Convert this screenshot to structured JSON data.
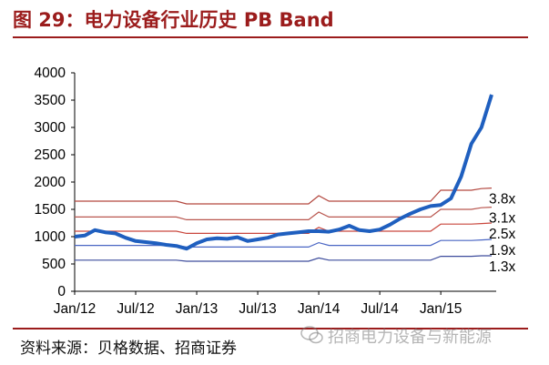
{
  "header": {
    "title": "图 29：电力设备行业历史 PB Band"
  },
  "footer": {
    "source": "资料来源：贝格数据、招商证券",
    "watermark": "招商电力设备与新能源"
  },
  "colors": {
    "title_red": "#9b1c1c",
    "price_line": "#1f5fbf",
    "band_3_8": "#b3473f",
    "band_3_1": "#b9574f",
    "band_2_5": "#c9473d",
    "band_1_9": "#4a66c4",
    "band_1_3": "#3d4c9c"
  },
  "chart_data": {
    "type": "line",
    "title": "",
    "xlabel": "",
    "ylabel": "",
    "ylim": [
      0,
      4000
    ],
    "yticks": [
      0,
      500,
      1000,
      1500,
      2000,
      2500,
      3000,
      3500,
      4000
    ],
    "xlim": [
      "2012-01",
      "2015-06"
    ],
    "xticks": [
      "Jan/12",
      "Jul/12",
      "Jan/13",
      "Jul/13",
      "Jan/14",
      "Jul/14",
      "Jan/15"
    ],
    "x": [
      "2012-01",
      "2012-02",
      "2012-03",
      "2012-04",
      "2012-05",
      "2012-06",
      "2012-07",
      "2012-08",
      "2012-09",
      "2012-10",
      "2012-11",
      "2012-12",
      "2013-01",
      "2013-02",
      "2013-03",
      "2013-04",
      "2013-05",
      "2013-06",
      "2013-07",
      "2013-08",
      "2013-09",
      "2013-10",
      "2013-11",
      "2013-12",
      "2014-01",
      "2014-02",
      "2014-03",
      "2014-04",
      "2014-05",
      "2014-06",
      "2014-07",
      "2014-08",
      "2014-09",
      "2014-10",
      "2014-11",
      "2014-12",
      "2015-01",
      "2015-02",
      "2015-03",
      "2015-04",
      "2015-05",
      "2015-06"
    ],
    "series": [
      {
        "name": "",
        "role": "price",
        "values": [
          1000,
          1020,
          1120,
          1080,
          1060,
          980,
          920,
          900,
          880,
          850,
          830,
          780,
          880,
          950,
          970,
          960,
          990,
          920,
          950,
          980,
          1040,
          1060,
          1080,
          1100,
          1100,
          1090,
          1130,
          1200,
          1120,
          1100,
          1130,
          1220,
          1330,
          1420,
          1500,
          1560,
          1580,
          1700,
          2100,
          2700,
          3000,
          3600
        ]
      },
      {
        "name": "3.8x",
        "role": "band",
        "values": [
          1650,
          1650,
          1650,
          1650,
          1650,
          1650,
          1650,
          1650,
          1650,
          1650,
          1650,
          1600,
          1600,
          1600,
          1600,
          1600,
          1600,
          1600,
          1600,
          1600,
          1600,
          1600,
          1600,
          1600,
          1750,
          1650,
          1650,
          1650,
          1650,
          1650,
          1650,
          1650,
          1650,
          1650,
          1650,
          1650,
          1850,
          1850,
          1850,
          1850,
          1880,
          1890
        ]
      },
      {
        "name": "3.1x",
        "role": "band",
        "values": [
          1360,
          1360,
          1360,
          1360,
          1360,
          1360,
          1360,
          1360,
          1360,
          1360,
          1360,
          1310,
          1310,
          1310,
          1310,
          1310,
          1310,
          1310,
          1310,
          1310,
          1310,
          1310,
          1310,
          1310,
          1450,
          1360,
          1360,
          1360,
          1360,
          1360,
          1360,
          1360,
          1360,
          1360,
          1360,
          1360,
          1500,
          1500,
          1500,
          1500,
          1530,
          1540
        ]
      },
      {
        "name": "2.5x",
        "role": "band",
        "values": [
          1100,
          1100,
          1100,
          1100,
          1100,
          1100,
          1100,
          1100,
          1100,
          1100,
          1100,
          1060,
          1060,
          1060,
          1060,
          1060,
          1060,
          1060,
          1060,
          1060,
          1060,
          1060,
          1060,
          1060,
          1170,
          1100,
          1100,
          1100,
          1100,
          1100,
          1100,
          1100,
          1100,
          1100,
          1100,
          1100,
          1230,
          1230,
          1230,
          1230,
          1240,
          1250
        ]
      },
      {
        "name": "1.9x",
        "role": "band",
        "values": [
          840,
          840,
          840,
          840,
          840,
          840,
          840,
          840,
          840,
          840,
          840,
          810,
          810,
          810,
          810,
          810,
          810,
          810,
          810,
          810,
          810,
          810,
          810,
          810,
          890,
          840,
          840,
          840,
          840,
          840,
          840,
          840,
          840,
          840,
          840,
          840,
          930,
          930,
          930,
          930,
          940,
          950
        ]
      },
      {
        "name": "1.3x",
        "role": "band",
        "values": [
          570,
          570,
          570,
          570,
          570,
          570,
          570,
          570,
          570,
          570,
          570,
          550,
          550,
          550,
          550,
          550,
          550,
          550,
          550,
          550,
          550,
          550,
          550,
          550,
          610,
          570,
          570,
          570,
          570,
          570,
          570,
          570,
          570,
          570,
          570,
          570,
          640,
          640,
          640,
          640,
          650,
          650
        ]
      }
    ]
  }
}
